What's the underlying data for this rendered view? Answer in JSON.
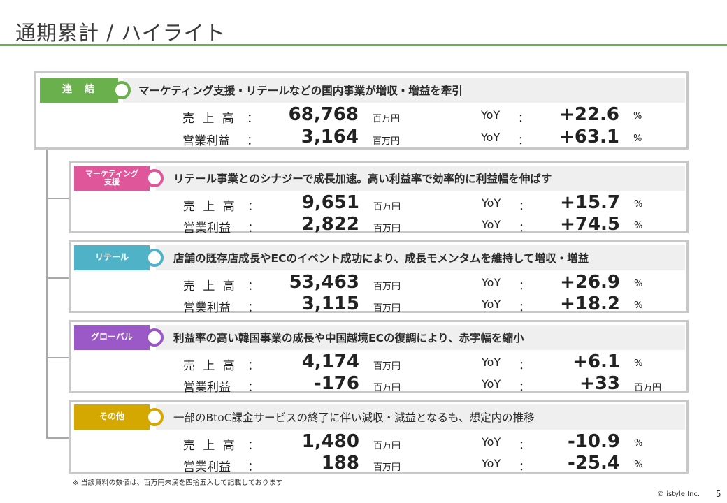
{
  "title": "通期累計 / ハイライト",
  "colors": {
    "accent": "#6ab04c",
    "consolidated": "#6ab04c",
    "marketing": "#e0569a",
    "retail": "#4fb2c6",
    "global": "#9b59c7",
    "other": "#d4a800"
  },
  "panels": [
    {
      "tag": "連　結",
      "headline_bold": "マーケティング支援・リテールなどの国内事業が増収・増益を牽引",
      "headline_plain": "",
      "rows": [
        {
          "label": "売 上 高",
          "colon": "：",
          "value": "68,768",
          "unit": "百万円",
          "yoy_label": "YoY",
          "yoy_colon": "：",
          "yoy_value": "+22.6",
          "yoy_unit": "%"
        },
        {
          "label": "営業利益",
          "colon": "：",
          "value": "3,164",
          "unit": "百万円",
          "yoy_label": "YoY",
          "yoy_colon": "：",
          "yoy_value": "+63.1",
          "yoy_unit": "%"
        }
      ]
    },
    {
      "tag": "マーケティング\n支援",
      "headline_bold": "リテール事業とのシナジーで成長加速。高い利益率で効率的に利益幅を伸ばす",
      "headline_plain": "",
      "rows": [
        {
          "label": "売 上 高",
          "colon": "：",
          "value": "9,651",
          "unit": "百万円",
          "yoy_label": "YoY",
          "yoy_colon": "：",
          "yoy_value": "+15.7",
          "yoy_unit": "%"
        },
        {
          "label": "営業利益",
          "colon": "：",
          "value": "2,822",
          "unit": "百万円",
          "yoy_label": "YoY",
          "yoy_colon": "：",
          "yoy_value": "+74.5",
          "yoy_unit": "%"
        }
      ]
    },
    {
      "tag": "リテール",
      "headline_bold": "店舗の既存店成長やECのイベント成功により、成長モメンタムを維持して増収・増益",
      "headline_plain": "",
      "rows": [
        {
          "label": "売 上 高",
          "colon": "：",
          "value": "53,463",
          "unit": "百万円",
          "yoy_label": "YoY",
          "yoy_colon": "：",
          "yoy_value": "+26.9",
          "yoy_unit": "%"
        },
        {
          "label": "営業利益",
          "colon": "：",
          "value": "3,115",
          "unit": "百万円",
          "yoy_label": "YoY",
          "yoy_colon": "：",
          "yoy_value": "+18.2",
          "yoy_unit": "%"
        }
      ]
    },
    {
      "tag": "グローバル",
      "headline_bold": "利益率の高い韓国事業の成長や中国越境ECの復調により、赤字幅を縮小",
      "headline_plain": "",
      "rows": [
        {
          "label": "売 上 高",
          "colon": "：",
          "value": "4,174",
          "unit": "百万円",
          "yoy_label": "YoY",
          "yoy_colon": "：",
          "yoy_value": "+6.1",
          "yoy_unit": "%"
        },
        {
          "label": "営業利益",
          "colon": "：",
          "value": "-176",
          "unit": "百万円",
          "yoy_label": "YoY",
          "yoy_colon": "：",
          "yoy_value": "+33",
          "yoy_unit": "百万円"
        }
      ]
    },
    {
      "tag": "その他",
      "headline_bold": "",
      "headline_plain": "一部のBtoC課金サービスの終了に伴い減収・減益となるも、想定内の推移",
      "rows": [
        {
          "label": "売 上 高",
          "colon": "：",
          "value": "1,480",
          "unit": "百万円",
          "yoy_label": "YoY",
          "yoy_colon": "：",
          "yoy_value": "-10.9",
          "yoy_unit": "%"
        },
        {
          "label": "営業利益",
          "colon": "：",
          "value": "188",
          "unit": "百万円",
          "yoy_label": "YoY",
          "yoy_colon": "：",
          "yoy_value": "-25.4",
          "yoy_unit": "%"
        }
      ]
    }
  ],
  "footnote": "※ 当該資料の数値は、百万円未満を四捨五入して記載しております",
  "copyright": "© istyle Inc.",
  "page_number": "5"
}
